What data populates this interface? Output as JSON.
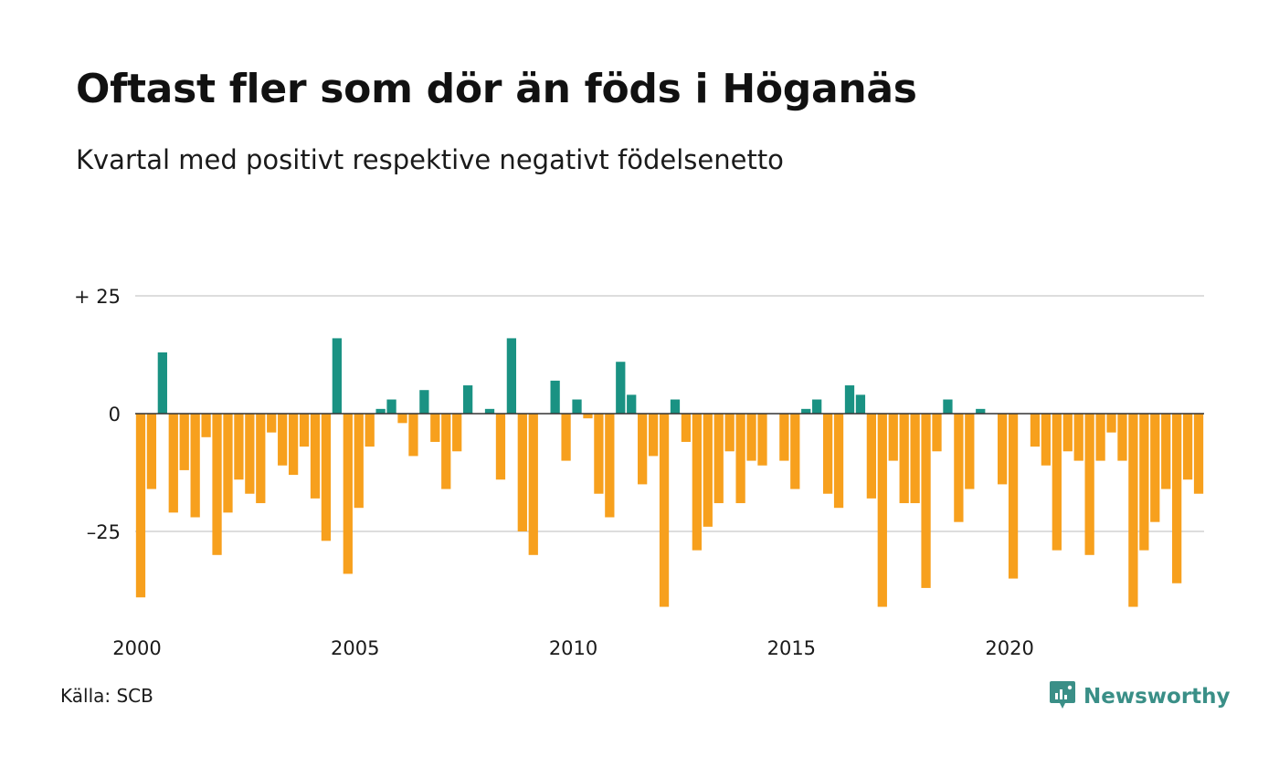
{
  "title": "Oftast fler som dör än föds i Höganäs",
  "subtitle": "Kvartal med positivt respektive negativt födelsenetto",
  "source": "Källa: SCB",
  "brand": {
    "name": "Newsworthy",
    "icon": "newsworthy-logo-icon"
  },
  "colors": {
    "positive": "#1a9283",
    "negative": "#f7a01d",
    "grid": "#dddddd",
    "baseline": "#333333"
  },
  "chart_data": {
    "type": "bar",
    "title": "Oftast fler som dör än föds i Höganäs",
    "subtitle": "Kvartal med positivt respektive negativt födelsenetto",
    "xlabel": "",
    "ylabel": "",
    "x_start": 2000,
    "periods_per_year": 4,
    "xlim": [
      2000,
      2024.75
    ],
    "ylim": [
      -45,
      30
    ],
    "yticks": [
      {
        "value": 25,
        "label": "+ 25"
      },
      {
        "value": 0,
        "label": "0"
      },
      {
        "value": -25,
        "label": "–25"
      }
    ],
    "xticks": [
      {
        "value": 2000,
        "label": "2000"
      },
      {
        "value": 2005,
        "label": "2005"
      },
      {
        "value": 2010,
        "label": "2010"
      },
      {
        "value": 2015,
        "label": "2015"
      },
      {
        "value": 2020,
        "label": "2020"
      }
    ],
    "grid": true,
    "values": [
      -39,
      -16,
      13,
      -21,
      -12,
      -22,
      -5,
      -30,
      -21,
      -14,
      -17,
      -19,
      -4,
      -11,
      -13,
      -7,
      -18,
      -27,
      16,
      -34,
      -20,
      -7,
      1,
      3,
      -2,
      -9,
      5,
      -6,
      -16,
      -8,
      6,
      0,
      1,
      -14,
      16,
      -25,
      -30,
      0,
      7,
      -10,
      3,
      -1,
      -17,
      -22,
      11,
      4,
      -15,
      -9,
      -41,
      3,
      -6,
      -29,
      -24,
      -19,
      -8,
      -19,
      -10,
      -11,
      0,
      -10,
      -16,
      1,
      3,
      -17,
      -20,
      6,
      4,
      -18,
      -41,
      -10,
      -19,
      -19,
      -37,
      -8,
      3,
      -23,
      -16,
      1,
      0,
      -15,
      -35,
      0,
      -7,
      -11,
      -29,
      -8,
      -10,
      -30,
      -10,
      -4,
      -10,
      -41,
      -29,
      -23,
      -16,
      -36,
      -14,
      -17
    ]
  }
}
